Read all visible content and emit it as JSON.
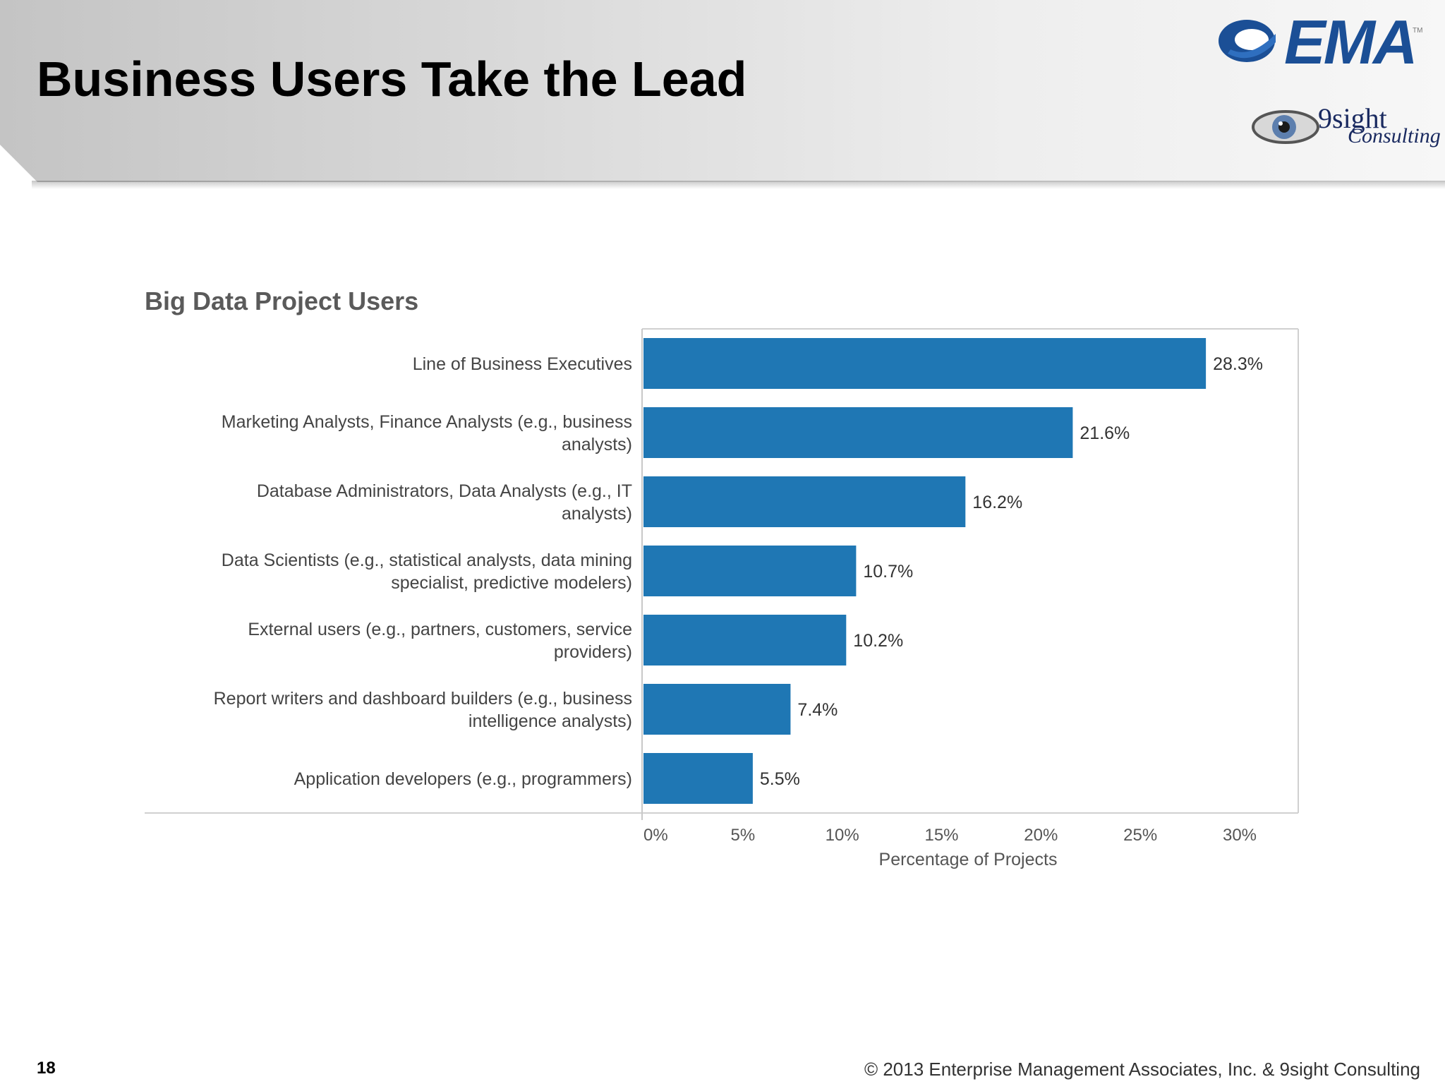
{
  "slide": {
    "title": "Business Users Take the Lead",
    "page_number": "18",
    "copyright": "© 2013 Enterprise Management Associates, Inc. & 9sight Consulting"
  },
  "logos": {
    "ema": "EMA",
    "nine_sight_top": "9sight",
    "nine_sight_bottom": "Consulting"
  },
  "colors": {
    "bar": "#1f77b4",
    "brand_blue": "#1b4f96"
  },
  "chart_data": {
    "type": "bar",
    "orientation": "horizontal",
    "title": "Big Data Project Users",
    "xlabel": "Percentage of Projects",
    "ylabel": "",
    "xlim": [
      0,
      30
    ],
    "xticks": [
      "0%",
      "5%",
      "10%",
      "15%",
      "20%",
      "25%",
      "30%"
    ],
    "categories": [
      [
        "Line of Business Executives"
      ],
      [
        "Marketing Analysts, Finance Analysts (e.g., business",
        "analysts)"
      ],
      [
        "Database Administrators, Data Analysts  (e.g., IT",
        "analysts)"
      ],
      [
        "Data Scientists (e.g.,  statistical analysts, data mining",
        "specialist, predictive modelers)"
      ],
      [
        "External users (e.g., partners, customers, service",
        "providers)"
      ],
      [
        "Report writers and dashboard builders (e.g., business",
        "intelligence analysts)"
      ],
      [
        "Application developers (e.g., programmers)"
      ]
    ],
    "values": [
      28.3,
      21.6,
      16.2,
      10.7,
      10.2,
      7.4,
      5.5
    ],
    "value_labels": [
      "28.3%",
      "21.6%",
      "16.2%",
      "10.7%",
      "10.2%",
      "7.4%",
      "5.5%"
    ],
    "grid": false
  }
}
